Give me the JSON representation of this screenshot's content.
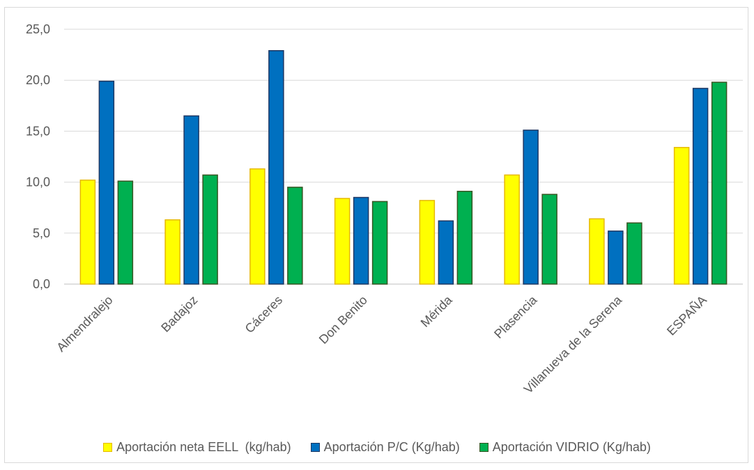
{
  "chart_data": {
    "type": "bar",
    "categories": [
      "Almendralejo",
      "Badajoz",
      "Cáceres",
      "Don Benito",
      "Mérida",
      "Plasencia",
      "Villanueva de la Serena",
      "ESPAÑA"
    ],
    "series": [
      {
        "name": "Aportación neta EELL  (kg/hab)",
        "values": [
          10.2,
          6.3,
          11.3,
          8.4,
          8.2,
          10.7,
          6.4,
          13.4
        ],
        "color": "#ffff00",
        "border": "#e6b800"
      },
      {
        "name": "Aportación P/C (Kg/hab)",
        "values": [
          19.9,
          16.5,
          22.9,
          8.5,
          6.2,
          15.1,
          5.2,
          19.2
        ],
        "color": "#0070c0",
        "border": "#1f3864"
      },
      {
        "name": "Aportación VIDRIO (Kg/hab)",
        "values": [
          10.1,
          10.7,
          9.5,
          8.1,
          9.1,
          8.8,
          6.0,
          19.8
        ],
        "color": "#00b050",
        "border": "#375623"
      }
    ],
    "yticks": [
      "0,0",
      "5,0",
      "10,0",
      "15,0",
      "20,0",
      "25,0"
    ],
    "ylim": [
      0,
      25
    ],
    "grid": true,
    "legend_position": "bottom"
  }
}
